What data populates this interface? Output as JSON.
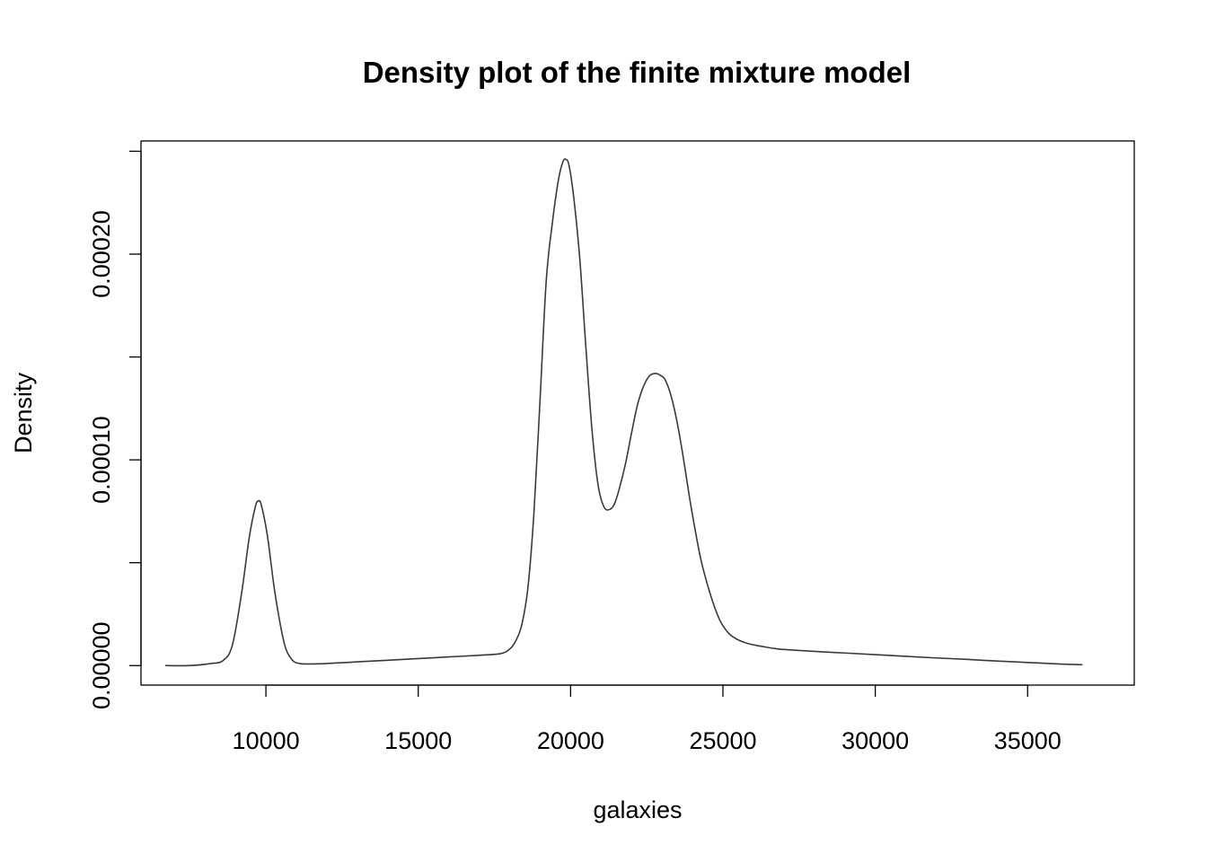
{
  "chart_data": {
    "type": "line",
    "title": "Density plot of the finite mixture model",
    "xlabel": "galaxies",
    "ylabel": "Density",
    "xlim": [
      5900,
      38500
    ],
    "ylim": [
      -9.5e-06,
      0.000255
    ],
    "x_ticks": [
      10000,
      15000,
      20000,
      25000,
      30000,
      35000
    ],
    "x_tick_labels": [
      "10000",
      "15000",
      "20000",
      "25000",
      "30000",
      "35000"
    ],
    "y_ticks": [
      0,
      5e-05,
      0.0001,
      0.00015,
      0.0002,
      0.00025
    ],
    "y_tick_labels": [
      "0.00000",
      "",
      "0.00010",
      "",
      "0.00020",
      ""
    ],
    "grid": false,
    "legend": "none",
    "line_color": "#3a3a3a",
    "series": [
      {
        "x": [
          6700,
          7500,
          8200,
          8600,
          8900,
          9200,
          9450,
          9650,
          9750,
          9850,
          10050,
          10300,
          10600,
          10850,
          11100,
          11500,
          12000,
          13000,
          14000,
          15000,
          16000,
          17000,
          17700,
          18000,
          18200,
          18400,
          18600,
          18800,
          19000,
          19200,
          19400,
          19600,
          19750,
          19850,
          19950,
          20100,
          20300,
          20500,
          20700,
          20900,
          21100,
          21300,
          21450,
          21600,
          21800,
          22000,
          22200,
          22400,
          22600,
          22800,
          22950,
          23100,
          23300,
          23500,
          23700,
          23900,
          24100,
          24300,
          24600,
          24900,
          25200,
          25500,
          25800,
          26100,
          26400,
          26700,
          27000,
          28000,
          29000,
          30000,
          31000,
          32000,
          33000,
          34000,
          35000,
          36000,
          36800
        ],
        "y": [
          0,
          0,
          1e-06,
          2.5e-06,
          1e-05,
          3.5e-05,
          6.2e-05,
          7.7e-05,
          8e-05,
          7.8e-05,
          6.3e-05,
          3.5e-05,
          1.1e-05,
          3e-06,
          1e-06,
          8e-07,
          1e-06,
          1.8e-06,
          2.6e-06,
          3.4e-06,
          4.2e-06,
          5e-06,
          5.8e-06,
          8e-06,
          1.2e-05,
          2e-05,
          3.8e-05,
          7.5e-05,
          0.00013,
          0.000187,
          0.000215,
          0.000236,
          0.000245,
          0.000246,
          0.000243,
          0.000228,
          0.000198,
          0.000155,
          0.000115,
          8.8e-05,
          7.7e-05,
          7.6e-05,
          7.9e-05,
          8.6e-05,
          9.8e-05,
          0.000113,
          0.000127,
          0.000136,
          0.000141,
          0.000142,
          0.000141,
          0.000139,
          0.000131,
          0.000118,
          0.000101,
          8.2e-05,
          6.5e-05,
          5e-05,
          3.4e-05,
          2.2e-05,
          1.55e-05,
          1.25e-05,
          1.08e-05,
          9.8e-06,
          9e-06,
          8.3e-06,
          7.8e-06,
          6.9e-06,
          6.1e-06,
          5.3e-06,
          4.5e-06,
          3.7e-06,
          3e-06,
          2.2e-06,
          1.5e-06,
          8e-07,
          4e-07
        ]
      }
    ]
  }
}
